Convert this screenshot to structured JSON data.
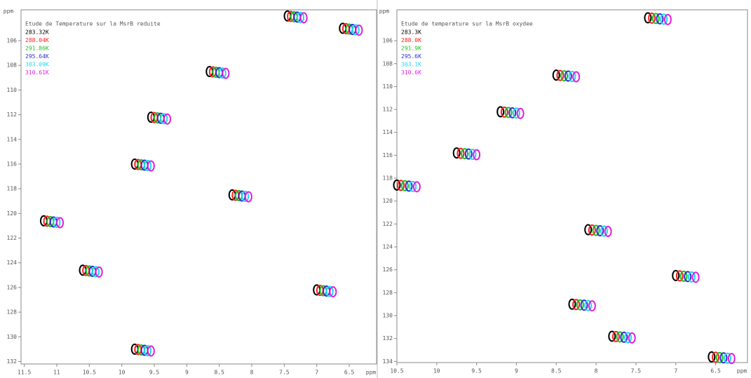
{
  "chart_data": [
    {
      "type": "scatter",
      "title": "Etude de Temperature sur la MsrB reduite",
      "xlabel": "ppm",
      "ylabel": "ppm",
      "xlim": [
        11.55,
        6.08
      ],
      "ylim": [
        103.5,
        132.2
      ],
      "xticks": [
        11.5,
        11.0,
        10.5,
        10.0,
        9.5,
        9.0,
        8.5,
        8.0,
        7.5,
        7.0,
        6.5
      ],
      "yticks": [
        106,
        108,
        110,
        112,
        114,
        116,
        118,
        120,
        122,
        124,
        126,
        128,
        130,
        132
      ],
      "series": [
        {
          "name": "283.32K",
          "color": "#000000",
          "x": [
            11.2,
            10.6,
            9.8,
            9.55,
            8.65,
            7.45,
            6.6,
            8.3,
            7.0,
            9.8
          ],
          "values": [
            120.6,
            124.6,
            116.0,
            112.2,
            108.5,
            104.0,
            105.0,
            118.5,
            126.2,
            131.0
          ]
        },
        {
          "name": "288.04K",
          "color": "#ff2020",
          "x": [
            11.15,
            10.55,
            9.75,
            9.5,
            8.6,
            7.4,
            6.55,
            8.25,
            6.95,
            9.75
          ],
          "values": [
            120.63,
            124.63,
            116.03,
            112.23,
            108.53,
            104.03,
            105.03,
            118.53,
            126.23,
            131.03
          ]
        },
        {
          "name": "291.86K",
          "color": "#20c020",
          "x": [
            11.1,
            10.5,
            9.7,
            9.45,
            8.55,
            7.35,
            6.5,
            8.2,
            6.9,
            9.7
          ],
          "values": [
            120.66,
            124.66,
            116.06,
            112.26,
            108.56,
            104.06,
            105.06,
            118.56,
            126.26,
            131.06
          ]
        },
        {
          "name": "295.64K",
          "color": "#3030d0",
          "x": [
            11.05,
            10.45,
            9.65,
            9.4,
            8.5,
            7.3,
            6.45,
            8.15,
            6.85,
            9.65
          ],
          "values": [
            120.69,
            124.69,
            116.09,
            112.29,
            108.59,
            104.09,
            105.09,
            118.59,
            126.29,
            131.09
          ]
        },
        {
          "name": "303.09K",
          "color": "#20d8f0",
          "x": [
            11.0,
            10.4,
            9.6,
            9.35,
            8.45,
            7.25,
            6.4,
            8.1,
            6.8,
            9.6
          ],
          "values": [
            120.72,
            124.72,
            116.12,
            112.32,
            108.62,
            104.12,
            105.12,
            118.62,
            126.32,
            131.12
          ]
        },
        {
          "name": "310.61K",
          "color": "#e020e0",
          "x": [
            10.95,
            10.35,
            9.55,
            9.3,
            8.4,
            7.2,
            6.35,
            8.05,
            6.75,
            9.55
          ],
          "values": [
            120.75,
            124.75,
            116.15,
            112.35,
            108.65,
            104.15,
            105.15,
            118.65,
            126.35,
            131.15
          ]
        }
      ]
    },
    {
      "type": "scatter",
      "title": "Etude de temperature sur la MsrB oxydee",
      "xlabel": "ppm",
      "ylabel": "ppm",
      "xlim": [
        10.5,
        6.1
      ],
      "ylim": [
        103.3,
        134.1
      ],
      "xticks": [
        10.5,
        10.0,
        9.5,
        9.0,
        8.5,
        8.0,
        7.5,
        7.0,
        6.5
      ],
      "yticks": [
        106,
        108,
        110,
        112,
        114,
        116,
        118,
        120,
        122,
        124,
        126,
        128,
        130,
        132,
        134
      ],
      "series": [
        {
          "name": "283.3K",
          "color": "#000000",
          "x": [
            10.5,
            9.75,
            9.2,
            8.5,
            7.35,
            7.0,
            8.1,
            8.3,
            6.55,
            7.8
          ],
          "values": [
            118.6,
            115.8,
            112.2,
            109.0,
            104.0,
            126.5,
            122.5,
            129.0,
            133.6,
            131.8
          ]
        },
        {
          "name": "288.0K",
          "color": "#ff2020",
          "x": [
            10.45,
            9.7,
            9.15,
            8.45,
            7.3,
            6.95,
            8.05,
            8.25,
            6.5,
            7.75
          ],
          "values": [
            118.63,
            115.83,
            112.23,
            109.03,
            104.03,
            126.53,
            122.53,
            129.03,
            133.63,
            131.83
          ]
        },
        {
          "name": "291.9K",
          "color": "#20c020",
          "x": [
            10.4,
            9.65,
            9.1,
            8.4,
            7.25,
            6.9,
            8.0,
            8.2,
            6.45,
            7.7
          ],
          "values": [
            118.66,
            115.86,
            112.26,
            109.06,
            104.06,
            126.56,
            122.56,
            129.06,
            133.66,
            131.86
          ]
        },
        {
          "name": "295.6K",
          "color": "#3030d0",
          "x": [
            10.35,
            9.6,
            9.05,
            8.35,
            7.2,
            6.85,
            7.95,
            8.15,
            6.4,
            7.65
          ],
          "values": [
            118.69,
            115.89,
            112.29,
            109.09,
            104.09,
            126.59,
            122.59,
            129.09,
            133.69,
            131.89
          ]
        },
        {
          "name": "303.1K",
          "color": "#20d8f0",
          "x": [
            10.3,
            9.55,
            9.0,
            8.3,
            7.15,
            6.8,
            7.9,
            8.1,
            6.35,
            7.6
          ],
          "values": [
            118.72,
            115.92,
            112.32,
            109.12,
            104.12,
            126.62,
            122.62,
            129.12,
            133.72,
            131.92
          ]
        },
        {
          "name": "310.6K",
          "color": "#e020e0",
          "x": [
            10.25,
            9.5,
            8.95,
            8.25,
            7.1,
            6.75,
            7.85,
            8.05,
            6.3,
            7.55
          ],
          "values": [
            118.75,
            115.95,
            112.35,
            109.15,
            104.15,
            126.65,
            122.65,
            129.15,
            133.75,
            131.95
          ]
        }
      ]
    }
  ]
}
